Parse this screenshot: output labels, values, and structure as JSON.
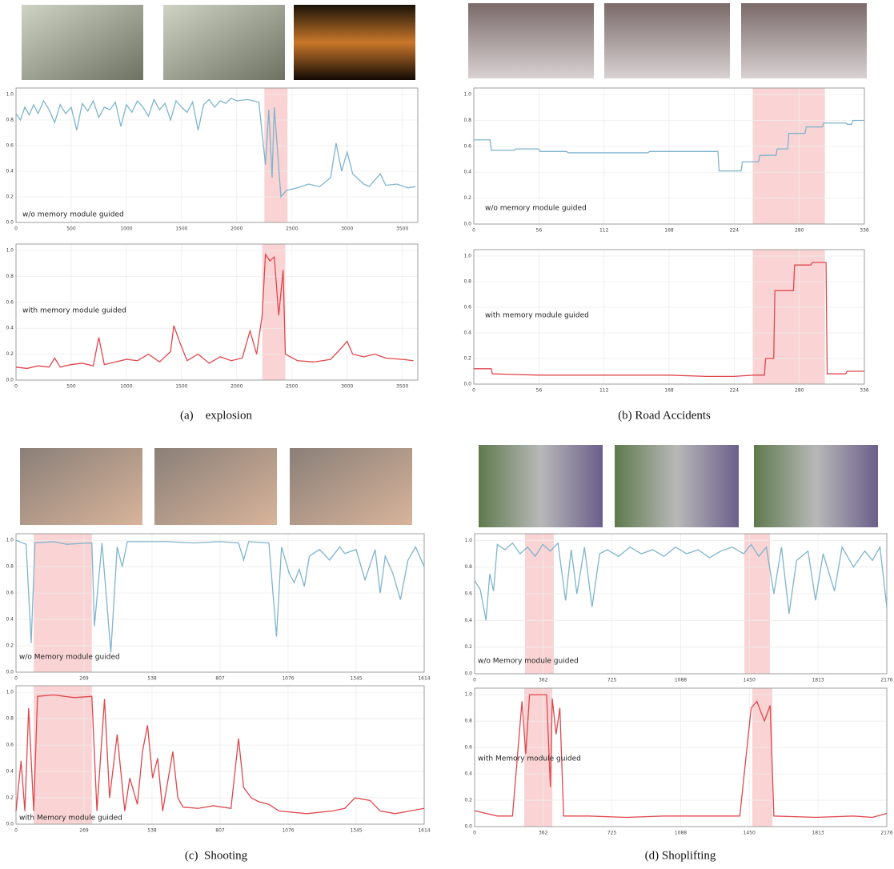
{
  "captions": [
    "(a)    explosion",
    "(b) Road Accidents",
    "(c)  Shooting",
    "(d) Shoplifting"
  ],
  "chart_data": [
    {
      "type": "line",
      "annotation": "w/o memory module guided",
      "grid": true,
      "xlim": [
        0,
        3640
      ],
      "xticks": [
        0,
        500,
        1000,
        1500,
        2000,
        2500,
        3000,
        3500
      ],
      "ylim": [
        0,
        1.05
      ],
      "yticks": [
        {
          "value": 0,
          "label": "0.0"
        },
        0.2,
        0.4,
        0.6,
        0.8,
        {
          "value": 1,
          "label": "1.0"
        }
      ],
      "highlights": [
        [
          2250,
          2460
        ]
      ],
      "x": [
        0,
        40,
        80,
        120,
        160,
        200,
        250,
        300,
        350,
        400,
        450,
        500,
        550,
        600,
        650,
        700,
        750,
        800,
        850,
        900,
        950,
        1000,
        1050,
        1100,
        1150,
        1200,
        1250,
        1300,
        1350,
        1400,
        1450,
        1500,
        1550,
        1600,
        1650,
        1700,
        1750,
        1800,
        1850,
        1900,
        1950,
        2000,
        2100,
        2200,
        2260,
        2290,
        2320,
        2340,
        2370,
        2400,
        2450,
        2550,
        2650,
        2750,
        2850,
        2900,
        2950,
        3000,
        3050,
        3100,
        3150,
        3200,
        3300,
        3350,
        3450,
        3550,
        3620
      ],
      "series": [
        {
          "color": "#7fb4cd",
          "values": [
            0.85,
            0.8,
            0.9,
            0.84,
            0.92,
            0.85,
            0.95,
            0.88,
            0.78,
            0.92,
            0.85,
            0.9,
            0.72,
            0.93,
            0.87,
            0.95,
            0.82,
            0.9,
            0.88,
            0.94,
            0.75,
            0.92,
            0.86,
            0.95,
            0.9,
            0.83,
            0.96,
            0.88,
            0.93,
            0.8,
            0.95,
            0.9,
            0.86,
            0.94,
            0.72,
            0.92,
            0.96,
            0.9,
            0.95,
            0.93,
            0.97,
            0.95,
            0.96,
            0.94,
            0.45,
            0.88,
            0.35,
            0.9,
            0.55,
            0.2,
            0.25,
            0.27,
            0.3,
            0.28,
            0.35,
            0.62,
            0.4,
            0.55,
            0.38,
            0.34,
            0.3,
            0.28,
            0.38,
            0.29,
            0.3,
            0.27,
            0.28
          ]
        }
      ]
    },
    {
      "type": "line",
      "annotation": "with memory module guided",
      "grid": true,
      "xlim": [
        0,
        3640
      ],
      "xticks": [
        0,
        500,
        1000,
        1500,
        2000,
        2500,
        3000,
        3500
      ],
      "ylim": [
        0,
        1.05
      ],
      "yticks": [
        {
          "value": 0,
          "label": "0.0"
        },
        0.2,
        0.4,
        0.6,
        0.8,
        {
          "value": 1,
          "label": "1.0"
        }
      ],
      "highlights": [
        [
          2230,
          2440
        ]
      ],
      "x": [
        0,
        100,
        200,
        300,
        350,
        400,
        500,
        600,
        700,
        750,
        800,
        900,
        1000,
        1100,
        1200,
        1300,
        1400,
        1430,
        1480,
        1550,
        1650,
        1750,
        1850,
        1950,
        2050,
        2120,
        2180,
        2230,
        2260,
        2300,
        2340,
        2380,
        2420,
        2440,
        2550,
        2700,
        2850,
        2950,
        3000,
        3050,
        3150,
        3250,
        3350,
        3500,
        3600
      ],
      "series": [
        {
          "color": "#e0474c",
          "values": [
            0.1,
            0.09,
            0.11,
            0.1,
            0.17,
            0.1,
            0.12,
            0.13,
            0.11,
            0.33,
            0.12,
            0.14,
            0.16,
            0.15,
            0.2,
            0.14,
            0.22,
            0.42,
            0.3,
            0.15,
            0.2,
            0.13,
            0.18,
            0.15,
            0.17,
            0.38,
            0.2,
            0.5,
            0.97,
            0.92,
            0.95,
            0.5,
            0.85,
            0.2,
            0.15,
            0.14,
            0.16,
            0.25,
            0.3,
            0.2,
            0.18,
            0.2,
            0.17,
            0.16,
            0.15
          ]
        }
      ]
    },
    {
      "type": "line",
      "annotation": "w/o memory module guided",
      "grid": true,
      "xlim": [
        0,
        336
      ],
      "xticks": [
        0,
        56,
        112,
        168,
        224,
        280,
        336
      ],
      "ylim": [
        0,
        1.05
      ],
      "yticks": [
        {
          "value": 0,
          "label": "0.0"
        },
        0.2,
        0.4,
        0.6,
        0.8,
        {
          "value": 1,
          "label": "1.0"
        }
      ],
      "highlights": [
        [
          240,
          302
        ]
      ],
      "x": [
        0,
        14,
        15,
        35,
        36,
        56,
        57,
        80,
        81,
        150,
        151,
        210,
        211,
        230,
        231,
        245,
        246,
        260,
        261,
        270,
        271,
        285,
        286,
        300,
        301,
        320,
        321,
        325,
        326,
        336
      ],
      "series": [
        {
          "color": "#7fb4cd",
          "values": [
            0.65,
            0.65,
            0.57,
            0.57,
            0.58,
            0.58,
            0.56,
            0.56,
            0.55,
            0.55,
            0.56,
            0.56,
            0.41,
            0.41,
            0.48,
            0.48,
            0.53,
            0.53,
            0.58,
            0.58,
            0.7,
            0.7,
            0.75,
            0.75,
            0.78,
            0.78,
            0.77,
            0.77,
            0.8,
            0.8
          ]
        }
      ]
    },
    {
      "type": "line",
      "annotation": "with memory module guided",
      "grid": true,
      "xlim": [
        0,
        336
      ],
      "xticks": [
        0,
        56,
        112,
        168,
        224,
        280,
        336
      ],
      "ylim": [
        0,
        1.05
      ],
      "yticks": [
        {
          "value": 0,
          "label": "0.0"
        },
        0.2,
        0.4,
        0.6,
        0.8,
        {
          "value": 1,
          "label": "1.0"
        }
      ],
      "highlights": [
        [
          240,
          302
        ]
      ],
      "x": [
        0,
        15,
        16,
        56,
        112,
        168,
        200,
        224,
        240,
        250,
        251,
        258,
        259,
        275,
        276,
        290,
        291,
        303,
        304,
        320,
        321,
        336
      ],
      "series": [
        {
          "color": "#e0474c",
          "values": [
            0.12,
            0.12,
            0.08,
            0.07,
            0.07,
            0.07,
            0.06,
            0.06,
            0.07,
            0.07,
            0.2,
            0.2,
            0.73,
            0.73,
            0.93,
            0.93,
            0.95,
            0.95,
            0.08,
            0.08,
            0.1,
            0.1
          ]
        }
      ]
    },
    {
      "type": "line",
      "annotation": "w/o Memory module guided",
      "grid": true,
      "xlim": [
        0,
        1614
      ],
      "xticks": [
        0,
        269,
        538,
        807,
        1076,
        1345,
        1614
      ],
      "ylim": [
        0,
        1.05
      ],
      "yticks": [
        {
          "value": 0,
          "label": "0.0"
        },
        0.2,
        0.4,
        0.6,
        0.8,
        {
          "value": 1,
          "label": "1.0"
        }
      ],
      "highlights": [
        [
          70,
          300
        ]
      ],
      "x": [
        0,
        40,
        60,
        75,
        150,
        200,
        300,
        310,
        340,
        375,
        400,
        420,
        440,
        600,
        700,
        807,
        880,
        900,
        920,
        1000,
        1030,
        1050,
        1080,
        1100,
        1120,
        1140,
        1160,
        1200,
        1240,
        1280,
        1300,
        1345,
        1380,
        1420,
        1440,
        1460,
        1490,
        1520,
        1550,
        1580,
        1614
      ],
      "series": [
        {
          "color": "#7fb4cd",
          "values": [
            1,
            0.97,
            0.22,
            0.98,
            0.99,
            0.97,
            0.98,
            0.35,
            0.98,
            0.15,
            0.95,
            0.8,
            0.99,
            0.99,
            0.98,
            0.99,
            0.98,
            0.85,
            0.99,
            0.98,
            0.27,
            0.95,
            0.75,
            0.68,
            0.78,
            0.65,
            0.88,
            0.93,
            0.85,
            0.95,
            0.9,
            0.93,
            0.7,
            0.93,
            0.6,
            0.88,
            0.75,
            0.55,
            0.85,
            0.95,
            0.8
          ]
        }
      ]
    },
    {
      "type": "line",
      "annotation": "with Memory module guided",
      "grid": true,
      "xlim": [
        0,
        1614
      ],
      "xticks": [
        0,
        269,
        538,
        807,
        1076,
        1345,
        1614
      ],
      "ylim": [
        0,
        1.05
      ],
      "yticks": [
        {
          "value": 0,
          "label": "0.0"
        },
        0.2,
        0.4,
        0.6,
        0.8,
        {
          "value": 1,
          "label": "1.0"
        }
      ],
      "highlights": [
        [
          70,
          300
        ]
      ],
      "x": [
        0,
        20,
        35,
        50,
        70,
        85,
        150,
        230,
        300,
        320,
        350,
        370,
        400,
        430,
        450,
        480,
        500,
        520,
        540,
        560,
        580,
        620,
        640,
        660,
        720,
        780,
        850,
        880,
        900,
        930,
        960,
        1000,
        1040,
        1150,
        1250,
        1300,
        1340,
        1400,
        1440,
        1500,
        1614
      ],
      "series": [
        {
          "color": "#e0474c",
          "values": [
            0.1,
            0.48,
            0.1,
            0.88,
            0.1,
            0.97,
            0.98,
            0.96,
            0.97,
            0.1,
            0.95,
            0.2,
            0.68,
            0.1,
            0.35,
            0.15,
            0.55,
            0.75,
            0.35,
            0.5,
            0.1,
            0.55,
            0.2,
            0.13,
            0.12,
            0.14,
            0.12,
            0.65,
            0.28,
            0.2,
            0.17,
            0.15,
            0.1,
            0.08,
            0.1,
            0.12,
            0.2,
            0.18,
            0.1,
            0.08,
            0.12
          ]
        }
      ]
    },
    {
      "type": "line",
      "annotation": "w/o Memory module guided",
      "grid": true,
      "xlim": [
        0,
        2176
      ],
      "xticks": [
        0,
        362,
        725,
        1088,
        1450,
        1813,
        2176
      ],
      "ylim": [
        0,
        1.05
      ],
      "yticks": [
        {
          "value": 0,
          "label": "0.0"
        },
        0.2,
        0.4,
        0.6,
        0.8,
        {
          "value": 1,
          "label": "1.0"
        }
      ],
      "highlights": [
        [
          266,
          418
        ],
        [
          1424,
          1559
        ]
      ],
      "x": [
        0,
        30,
        60,
        80,
        100,
        120,
        160,
        200,
        240,
        280,
        320,
        360,
        400,
        440,
        480,
        510,
        540,
        580,
        620,
        660,
        700,
        760,
        820,
        880,
        940,
        1000,
        1060,
        1120,
        1180,
        1240,
        1300,
        1360,
        1420,
        1460,
        1500,
        1540,
        1580,
        1620,
        1660,
        1700,
        1760,
        1800,
        1840,
        1900,
        1940,
        2000,
        2060,
        2100,
        2140,
        2176
      ],
      "series": [
        {
          "color": "#7fb4cd",
          "values": [
            0.7,
            0.63,
            0.4,
            0.75,
            0.62,
            0.97,
            0.93,
            0.98,
            0.9,
            0.95,
            0.88,
            0.97,
            0.92,
            0.98,
            0.55,
            0.93,
            0.6,
            0.95,
            0.5,
            0.9,
            0.93,
            0.88,
            0.95,
            0.9,
            0.93,
            0.88,
            0.95,
            0.9,
            0.93,
            0.87,
            0.92,
            0.95,
            0.9,
            0.97,
            0.88,
            0.95,
            0.6,
            0.95,
            0.45,
            0.85,
            0.92,
            0.55,
            0.9,
            0.62,
            0.95,
            0.8,
            0.92,
            0.85,
            0.95,
            0.5
          ]
        }
      ]
    },
    {
      "type": "line",
      "annotation": "with Memory module guided",
      "grid": true,
      "xlim": [
        0,
        2176
      ],
      "xticks": [
        0,
        362,
        725,
        1088,
        1450,
        1813,
        2176
      ],
      "ylim": [
        0,
        1.05
      ],
      "yticks": [
        {
          "value": 0,
          "label": "0.0"
        },
        0.2,
        0.4,
        0.6,
        0.8,
        {
          "value": 1,
          "label": "1.0"
        }
      ],
      "highlights": [
        [
          262,
          410
        ],
        [
          1466,
          1572
        ]
      ],
      "x": [
        0,
        60,
        120,
        200,
        250,
        270,
        290,
        380,
        400,
        410,
        430,
        450,
        470,
        600,
        800,
        1000,
        1200,
        1400,
        1460,
        1490,
        1530,
        1560,
        1580,
        1800,
        2000,
        2100,
        2176
      ],
      "series": [
        {
          "color": "#e0474c",
          "values": [
            0.12,
            0.1,
            0.08,
            0.08,
            0.95,
            0.55,
            1,
            1,
            0.3,
            0.97,
            0.7,
            0.9,
            0.08,
            0.08,
            0.07,
            0.08,
            0.08,
            0.08,
            0.9,
            0.95,
            0.8,
            0.92,
            0.08,
            0.07,
            0.08,
            0.07,
            0.1
          ]
        }
      ]
    }
  ]
}
